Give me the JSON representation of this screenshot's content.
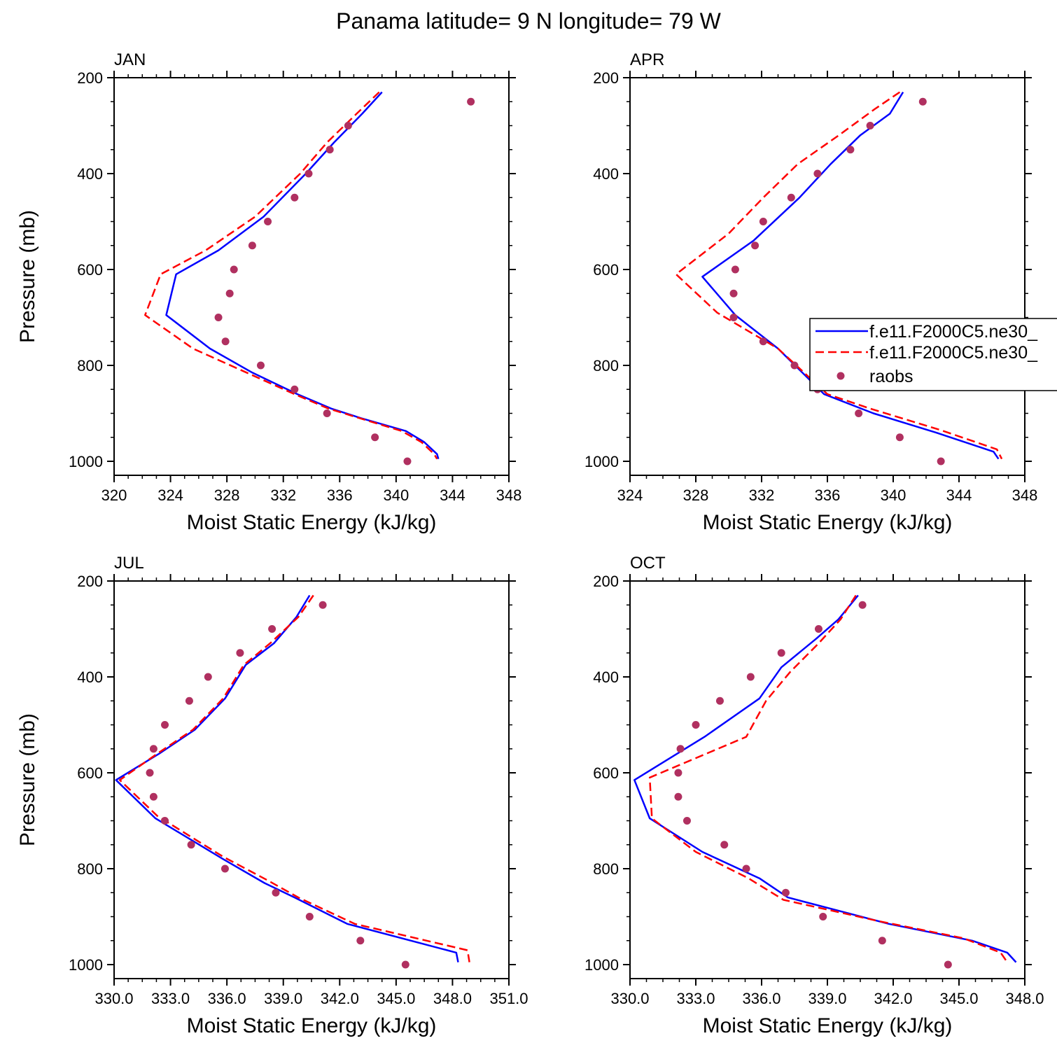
{
  "title": "Panama  latitude= 9 N longitude= 79 W",
  "legend": {
    "entries": [
      {
        "label": "f.e11.F2000C5.ne30_",
        "style": "solid",
        "color": "#0000ff"
      },
      {
        "label": "f.e11.F2000C5.ne30_",
        "style": "dashed",
        "color": "#ff0000"
      },
      {
        "label": "raobs",
        "style": "marker",
        "color": "#b03060"
      }
    ]
  },
  "colors": {
    "model_solid": "#0000ff",
    "model_dashed": "#ff0000",
    "raobs": "#b03060"
  },
  "chart_data": [
    {
      "type": "line",
      "panel_label": "JAN",
      "xlabel": "Moist Static Energy (kJ/kg)",
      "ylabel": "Pressure (mb)",
      "xlim": [
        320,
        348
      ],
      "ylim": [
        200,
        1000
      ],
      "y_inverted": true,
      "xticks": [
        320,
        324,
        328,
        332,
        336,
        340,
        344,
        348
      ],
      "xtick_labels": [
        "320",
        "324",
        "328",
        "332",
        "336",
        "340",
        "344",
        "348"
      ],
      "yticks": [
        200,
        400,
        600,
        800,
        1000
      ],
      "ytick_labels": [
        "200",
        "400",
        "600",
        "800",
        "1000"
      ],
      "series": [
        {
          "name": "f.e11.F2000C5.ne30_",
          "style": "solid",
          "x": [
            339.0,
            337.6,
            335.6,
            333.6,
            330.6,
            327.4,
            324.4,
            323.7,
            326.8,
            329.8,
            333.0,
            335.4,
            337.5,
            340.7,
            342.0,
            342.9,
            343.0
          ],
          "y": [
            230,
            275,
            335,
            400,
            490,
            560,
            610,
            695,
            765,
            815,
            860,
            890,
            910,
            937,
            960,
            985,
            995
          ]
        },
        {
          "name": "f.e11.F2000C5.ne30_",
          "style": "dashed",
          "x": [
            338.8,
            337.2,
            335.1,
            333.2,
            330.0,
            326.5,
            323.3,
            322.2,
            325.6,
            329.4,
            332.8,
            335.2,
            337.4,
            340.4,
            341.8,
            342.7,
            342.9
          ],
          "y": [
            230,
            275,
            335,
            400,
            490,
            560,
            610,
            695,
            765,
            815,
            860,
            890,
            910,
            937,
            960,
            985,
            995
          ]
        },
        {
          "name": "raobs",
          "style": "marker",
          "x": [
            345.3,
            336.6,
            335.3,
            333.8,
            332.8,
            330.9,
            329.8,
            328.5,
            328.2,
            327.4,
            327.9,
            330.4,
            332.8,
            335.1,
            338.5,
            340.8
          ],
          "y": [
            250,
            300,
            350,
            400,
            450,
            500,
            550,
            600,
            650,
            700,
            750,
            800,
            850,
            900,
            950,
            1000
          ]
        }
      ]
    },
    {
      "type": "line",
      "panel_label": "APR",
      "xlabel": "Moist Static Energy (kJ/kg)",
      "ylabel": "",
      "xlim": [
        324,
        348
      ],
      "ylim": [
        200,
        1000
      ],
      "y_inverted": true,
      "xticks": [
        324,
        328,
        332,
        336,
        340,
        344,
        348
      ],
      "xtick_labels": [
        "324",
        "328",
        "332",
        "336",
        "340",
        "344",
        "348"
      ],
      "yticks": [
        200,
        400,
        600,
        800,
        1000
      ],
      "ytick_labels": [
        "200",
        "400",
        "600",
        "800",
        "1000"
      ],
      "series": [
        {
          "name": "f.e11.F2000C5.ne30_",
          "style": "solid",
          "x": [
            340.6,
            339.8,
            338.0,
            336.2,
            334.3,
            331.5,
            328.4,
            330.4,
            333.0,
            335.8,
            338.8,
            342.6,
            346.1,
            346.4
          ],
          "y": [
            230,
            275,
            320,
            380,
            450,
            540,
            615,
            695,
            765,
            860,
            900,
            940,
            980,
            995
          ]
        },
        {
          "name": "f.e11.F2000C5.ne30_",
          "style": "dashed",
          "x": [
            340.4,
            338.9,
            336.7,
            334.2,
            332.1,
            330.0,
            326.8,
            329.3,
            333.0,
            336.0,
            338.6,
            342.9,
            346.3,
            346.6
          ],
          "y": [
            230,
            265,
            320,
            380,
            450,
            525,
            610,
            690,
            765,
            860,
            890,
            935,
            975,
            995
          ]
        },
        {
          "name": "raobs",
          "style": "marker",
          "x": [
            341.8,
            338.6,
            337.4,
            335.4,
            333.8,
            332.1,
            331.6,
            330.4,
            330.3,
            330.3,
            332.1,
            334.0,
            335.4,
            337.9,
            340.4,
            342.9
          ],
          "y": [
            250,
            300,
            350,
            400,
            450,
            500,
            550,
            600,
            650,
            700,
            750,
            800,
            850,
            900,
            950,
            1000
          ]
        }
      ]
    },
    {
      "type": "line",
      "panel_label": "JUL",
      "xlabel": "Moist Static Energy (kJ/kg)",
      "ylabel": "Pressure (mb)",
      "xlim": [
        330,
        351
      ],
      "ylim": [
        200,
        1000
      ],
      "y_inverted": true,
      "xticks": [
        330,
        333,
        336,
        339,
        342,
        345,
        348,
        351
      ],
      "xtick_labels": [
        "330.0",
        "333.0",
        "336.0",
        "339.0",
        "342.0",
        "345.0",
        "348.0",
        "351.0"
      ],
      "yticks": [
        200,
        400,
        600,
        800,
        1000
      ],
      "ytick_labels": [
        "200",
        "400",
        "600",
        "800",
        "1000"
      ],
      "series": [
        {
          "name": "f.e11.F2000C5.ne30_",
          "style": "solid",
          "x": [
            340.4,
            339.7,
            338.5,
            337.0,
            335.9,
            334.3,
            332.4,
            330.1,
            332.2,
            335.8,
            338.0,
            339.6,
            342.4,
            348.2,
            348.3
          ],
          "y": [
            230,
            275,
            330,
            375,
            445,
            510,
            560,
            615,
            695,
            780,
            830,
            860,
            915,
            975,
            995
          ]
        },
        {
          "name": "f.e11.F2000C5.ne30_",
          "style": "dashed",
          "x": [
            340.6,
            339.8,
            338.3,
            336.9,
            335.8,
            334.2,
            332.3,
            330.3,
            332.3,
            335.8,
            338.2,
            339.8,
            342.8,
            348.8,
            348.9
          ],
          "y": [
            230,
            275,
            330,
            375,
            445,
            510,
            560,
            615,
            690,
            775,
            825,
            860,
            915,
            970,
            995
          ]
        },
        {
          "name": "raobs",
          "style": "marker",
          "x": [
            341.1,
            338.4,
            336.7,
            335.0,
            334.0,
            332.7,
            332.1,
            331.9,
            332.1,
            332.7,
            334.1,
            335.9,
            338.6,
            340.4,
            343.1,
            345.5
          ],
          "y": [
            250,
            300,
            350,
            400,
            450,
            500,
            550,
            600,
            650,
            700,
            750,
            800,
            850,
            900,
            950,
            1000
          ]
        }
      ]
    },
    {
      "type": "line",
      "panel_label": "OCT",
      "xlabel": "Moist Static Energy (kJ/kg)",
      "ylabel": "",
      "xlim": [
        330,
        348
      ],
      "ylim": [
        200,
        1000
      ],
      "y_inverted": true,
      "xticks": [
        330,
        333,
        336,
        339,
        342,
        345,
        348
      ],
      "xtick_labels": [
        "330.0",
        "333.0",
        "336.0",
        "339.0",
        "342.0",
        "345.0",
        "348.0"
      ],
      "yticks": [
        200,
        400,
        600,
        800,
        1000
      ],
      "ytick_labels": [
        "200",
        "400",
        "600",
        "800",
        "1000"
      ],
      "series": [
        {
          "name": "f.e11.F2000C5.ne30_",
          "style": "solid",
          "x": [
            340.4,
            339.5,
            338.5,
            336.9,
            335.9,
            333.4,
            330.2,
            330.9,
            333.3,
            335.9,
            337.2,
            341.8,
            345.6,
            347.2,
            347.6
          ],
          "y": [
            230,
            280,
            320,
            380,
            445,
            525,
            615,
            695,
            765,
            820,
            860,
            915,
            950,
            975,
            995
          ]
        },
        {
          "name": "f.e11.F2000C5.ne30_",
          "style": "dashed",
          "x": [
            340.3,
            339.6,
            338.6,
            337.3,
            336.2,
            335.3,
            330.9,
            331.0,
            333.0,
            335.4,
            337.0,
            341.4,
            345.2,
            346.9,
            347.2
          ],
          "y": [
            230,
            280,
            330,
            390,
            450,
            525,
            610,
            695,
            765,
            820,
            865,
            910,
            945,
            975,
            995
          ]
        },
        {
          "name": "raobs",
          "style": "marker",
          "x": [
            340.6,
            338.6,
            336.9,
            335.5,
            334.1,
            333.0,
            332.3,
            332.2,
            332.2,
            332.6,
            334.3,
            335.3,
            337.1,
            338.8,
            341.5,
            344.5
          ],
          "y": [
            250,
            300,
            350,
            400,
            450,
            500,
            550,
            600,
            650,
            700,
            750,
            800,
            850,
            900,
            950,
            1000
          ]
        }
      ]
    }
  ]
}
